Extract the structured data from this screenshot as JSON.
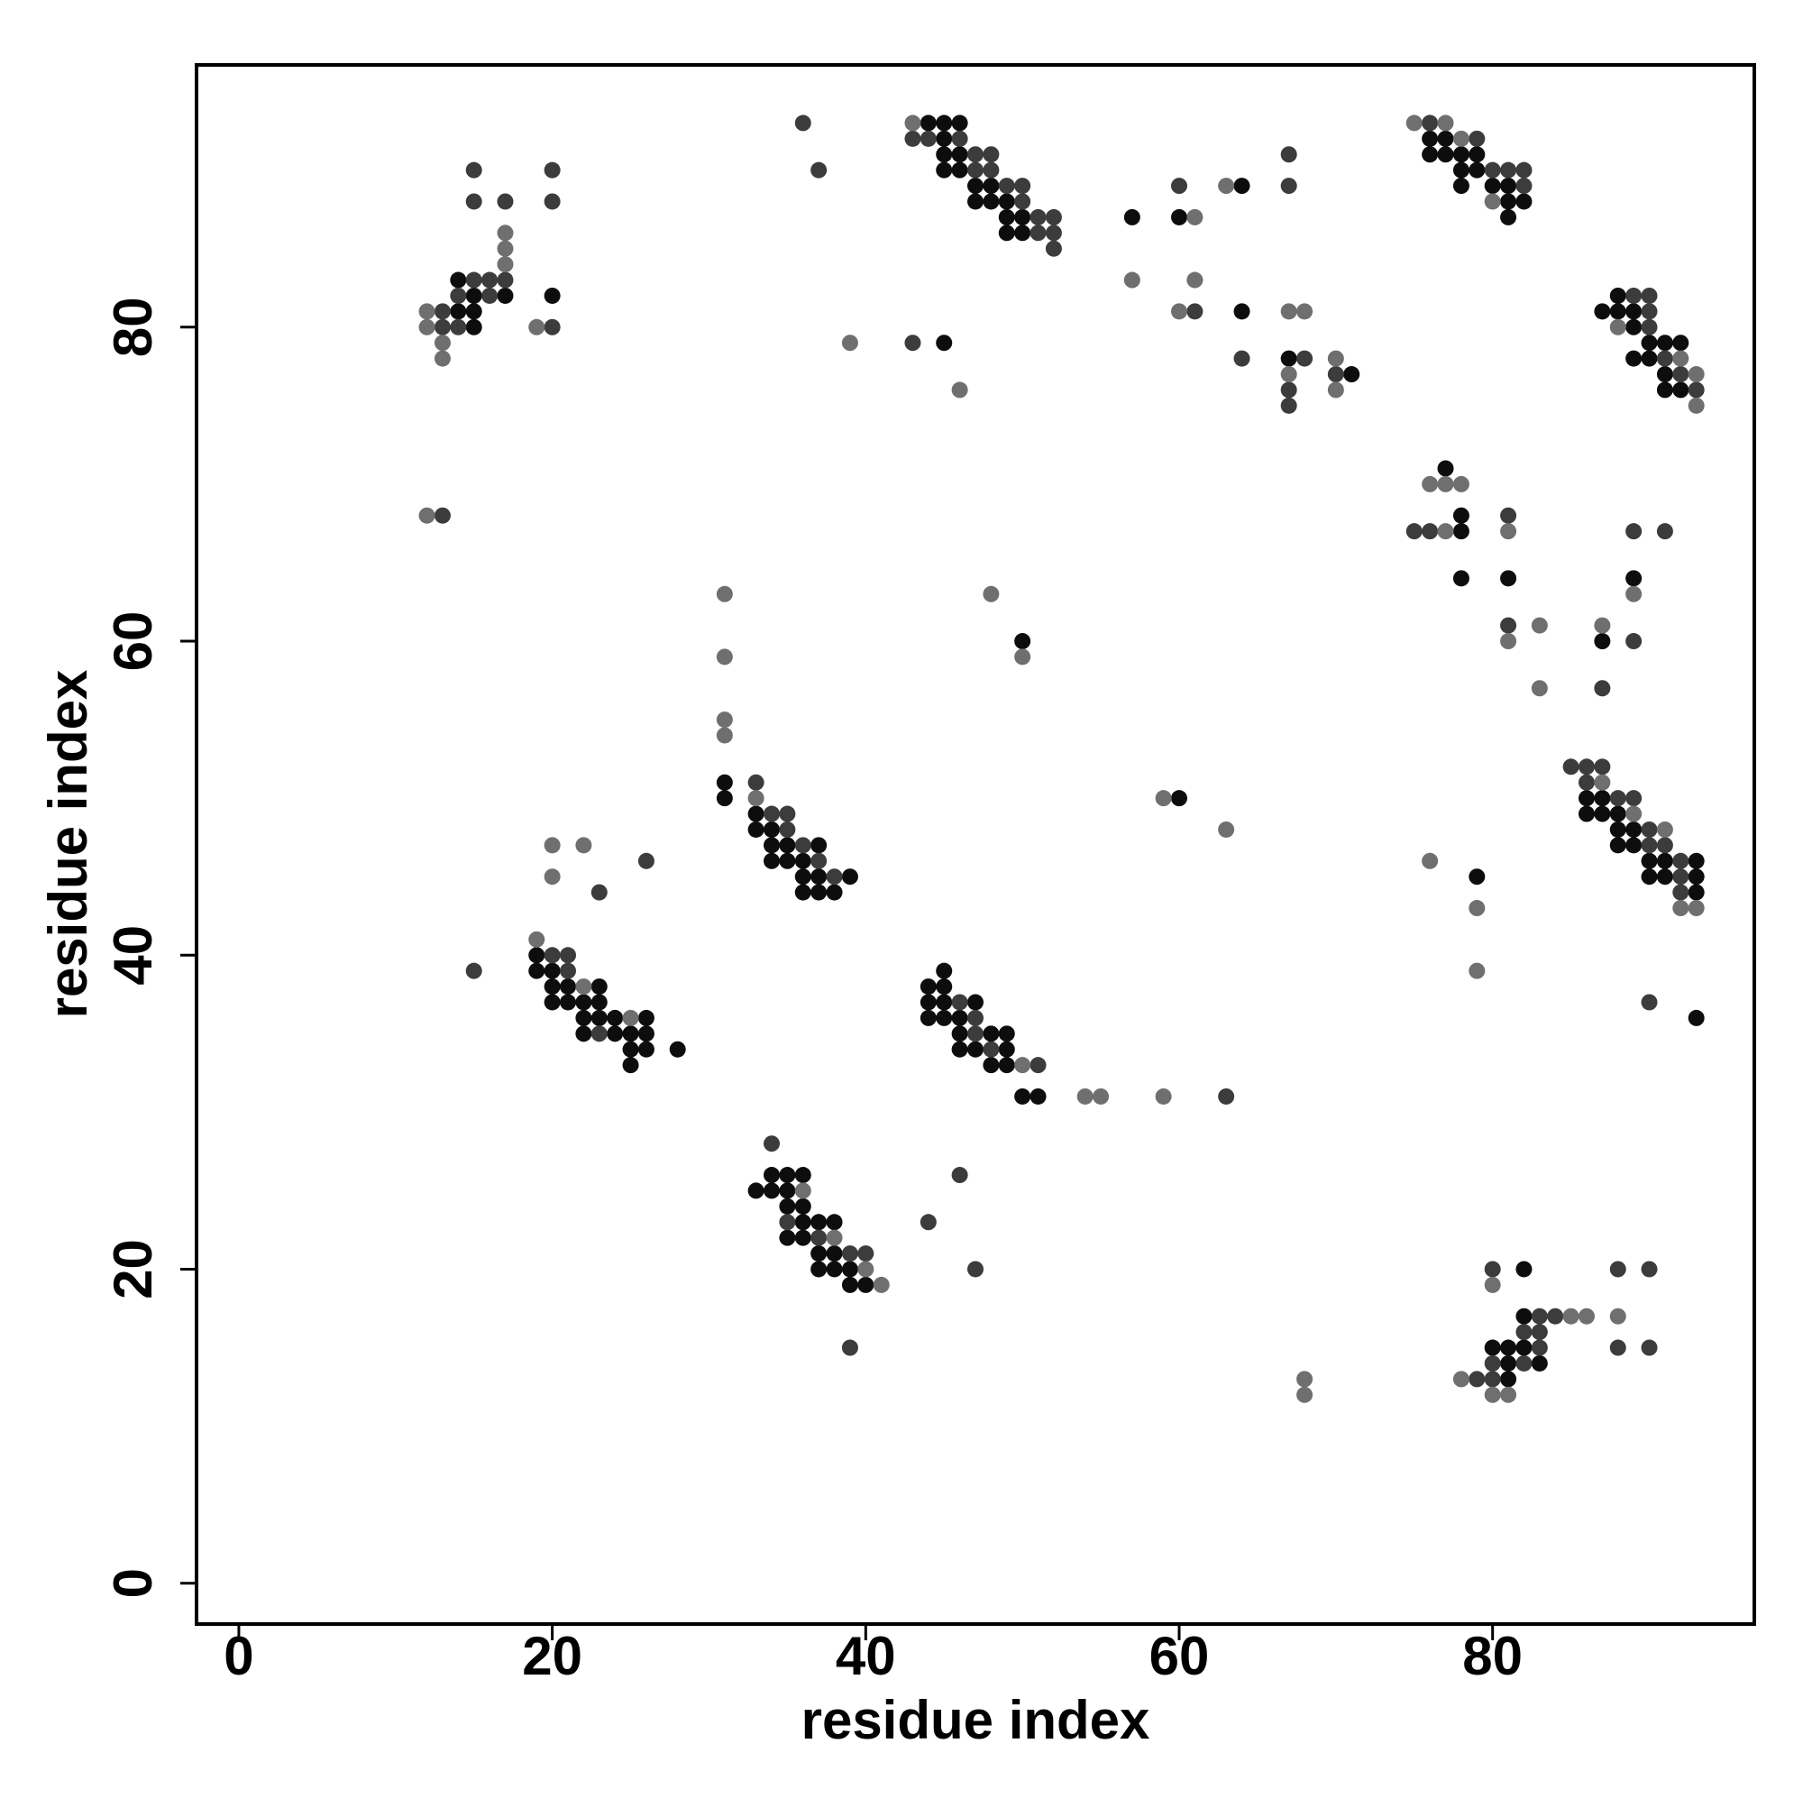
{
  "chart_data": {
    "type": "scatter",
    "xlabel": "residue index",
    "ylabel": "residue index",
    "xlim": [
      -2.7,
      96.7
    ],
    "ylim": [
      -2.6,
      96.7
    ],
    "xticks": [
      0,
      20,
      40,
      60,
      80
    ],
    "yticks": [
      0,
      20,
      40,
      60,
      80
    ],
    "series": [
      {
        "color": "#0d0d0d",
        "x": [
          17,
          14,
          15,
          14,
          15,
          15,
          20,
          44,
          45,
          46,
          45,
          45,
          46,
          45,
          46,
          47,
          48,
          47,
          48,
          49,
          49,
          50,
          49,
          50,
          57,
          60,
          64,
          64,
          67,
          71,
          45,
          76,
          77,
          76,
          77,
          78,
          79,
          78,
          79,
          78,
          80,
          81,
          82,
          81,
          81,
          87,
          88,
          88,
          89,
          89,
          90,
          91,
          92,
          89,
          90,
          91,
          91,
          92,
          77,
          78,
          78,
          78,
          81,
          87,
          89,
          86,
          87,
          86,
          87,
          88,
          88,
          89,
          88,
          89,
          90,
          91,
          93,
          90,
          91,
          93,
          93,
          79,
          93,
          82,
          82,
          80,
          81,
          82,
          81,
          83,
          81,
          31,
          31,
          33,
          33,
          34,
          34,
          35,
          37,
          34,
          35,
          36,
          36,
          37,
          39,
          36,
          37,
          38,
          50,
          60,
          19,
          19,
          20,
          20,
          21,
          23,
          20,
          21,
          22,
          23,
          22,
          23,
          24,
          26,
          22,
          24,
          25,
          26,
          25,
          26,
          28,
          25,
          45,
          44,
          45,
          44,
          45,
          47,
          44,
          45,
          46,
          46,
          48,
          49,
          46,
          47,
          49,
          48,
          49,
          50,
          51,
          33,
          34,
          34,
          35,
          36,
          35,
          35,
          36,
          36,
          37,
          38,
          35,
          36,
          37,
          38,
          37,
          38,
          39,
          39,
          40
        ],
        "y": [
          82,
          83,
          82,
          81,
          81,
          80,
          82,
          93,
          93,
          93,
          92,
          91,
          91,
          90,
          90,
          89,
          89,
          88,
          88,
          88,
          87,
          87,
          86,
          86,
          87,
          87,
          89,
          81,
          78,
          77,
          79,
          92,
          92,
          91,
          91,
          91,
          91,
          90,
          90,
          89,
          89,
          88,
          88,
          89,
          87,
          81,
          82,
          81,
          81,
          80,
          79,
          79,
          79,
          78,
          78,
          77,
          76,
          76,
          71,
          67,
          68,
          64,
          64,
          60,
          64,
          50,
          50,
          49,
          49,
          49,
          48,
          48,
          47,
          47,
          46,
          46,
          46,
          45,
          45,
          45,
          44,
          45,
          36,
          20,
          17,
          15,
          15,
          15,
          14,
          14,
          13,
          51,
          50,
          49,
          48,
          48,
          47,
          47,
          47,
          46,
          46,
          46,
          45,
          45,
          45,
          44,
          44,
          44,
          60,
          50,
          40,
          39,
          39,
          38,
          38,
          38,
          37,
          37,
          37,
          37,
          36,
          36,
          36,
          36,
          35,
          35,
          35,
          35,
          34,
          34,
          34,
          33,
          39,
          38,
          38,
          37,
          37,
          37,
          36,
          36,
          36,
          35,
          35,
          35,
          34,
          34,
          34,
          33,
          33,
          31,
          31,
          25,
          25,
          26,
          26,
          26,
          25,
          24,
          24,
          23,
          23,
          23,
          22,
          22,
          21,
          21,
          20,
          20,
          20,
          19,
          19
        ]
      },
      {
        "color": "#3c3c3c",
        "x": [
          15,
          15,
          17,
          17,
          16,
          16,
          15,
          14,
          13,
          14,
          13,
          20,
          20,
          20,
          13,
          36,
          37,
          43,
          44,
          46,
          47,
          48,
          47,
          48,
          49,
          50,
          50,
          51,
          52,
          51,
          52,
          52,
          60,
          67,
          67,
          61,
          64,
          68,
          67,
          67,
          70,
          43,
          76,
          79,
          80,
          81,
          82,
          82,
          89,
          90,
          90,
          90,
          91,
          92,
          93,
          75,
          76,
          81,
          81,
          87,
          89,
          91,
          89,
          85,
          86,
          87,
          86,
          88,
          89,
          90,
          90,
          91,
          92,
          92,
          92,
          90,
          80,
          88,
          90,
          83,
          84,
          83,
          82,
          83,
          80,
          82,
          79,
          80,
          88,
          90,
          33,
          34,
          35,
          35,
          36,
          37,
          38,
          23,
          26,
          15,
          20,
          21,
          21,
          23,
          46,
          47,
          47,
          48,
          51,
          63,
          34,
          35,
          37,
          39,
          40,
          39,
          44,
          46,
          47
        ],
        "y": [
          90,
          88,
          88,
          83,
          83,
          82,
          83,
          82,
          81,
          80,
          80,
          90,
          88,
          80,
          68,
          93,
          90,
          92,
          92,
          92,
          91,
          91,
          90,
          90,
          89,
          89,
          88,
          87,
          87,
          86,
          86,
          85,
          89,
          91,
          89,
          81,
          78,
          78,
          76,
          75,
          77,
          79,
          93,
          92,
          90,
          90,
          90,
          89,
          82,
          82,
          81,
          80,
          78,
          77,
          76,
          67,
          67,
          68,
          61,
          57,
          67,
          67,
          60,
          52,
          52,
          52,
          51,
          50,
          50,
          48,
          47,
          47,
          46,
          45,
          44,
          37,
          20,
          20,
          20,
          17,
          17,
          15,
          16,
          16,
          14,
          14,
          13,
          13,
          15,
          15,
          51,
          49,
          49,
          48,
          47,
          46,
          45,
          44,
          46,
          39,
          40,
          40,
          39,
          35,
          37,
          36,
          35,
          34,
          33,
          31,
          28,
          23,
          22,
          21,
          21,
          15,
          23,
          26,
          20
        ]
      },
      {
        "color": "#6f6f6f",
        "x": [
          17,
          17,
          17,
          12,
          12,
          13,
          13,
          19,
          12,
          43,
          61,
          63,
          57,
          61,
          60,
          67,
          68,
          67,
          70,
          70,
          39,
          46,
          75,
          77,
          78,
          80,
          88,
          92,
          93,
          93,
          76,
          77,
          78,
          77,
          81,
          81,
          83,
          83,
          87,
          89,
          87,
          89,
          91,
          92,
          93,
          76,
          79,
          79,
          80,
          85,
          86,
          88,
          78,
          80,
          81,
          68,
          68,
          31,
          31,
          31,
          31,
          33,
          48,
          50,
          59,
          63,
          20,
          22,
          20,
          19,
          22,
          25,
          50,
          54,
          55,
          59,
          36,
          38,
          40,
          41
        ],
        "y": [
          86,
          85,
          84,
          81,
          80,
          79,
          78,
          80,
          68,
          93,
          87,
          89,
          83,
          83,
          81,
          81,
          81,
          77,
          78,
          76,
          79,
          76,
          93,
          93,
          92,
          88,
          80,
          78,
          77,
          75,
          70,
          70,
          70,
          67,
          67,
          60,
          61,
          57,
          61,
          63,
          51,
          49,
          48,
          43,
          43,
          46,
          43,
          39,
          19,
          17,
          17,
          17,
          13,
          12,
          12,
          13,
          12,
          63,
          59,
          55,
          54,
          50,
          63,
          59,
          50,
          48,
          47,
          47,
          45,
          41,
          38,
          36,
          33,
          31,
          31,
          31,
          25,
          22,
          20,
          19
        ]
      }
    ]
  }
}
